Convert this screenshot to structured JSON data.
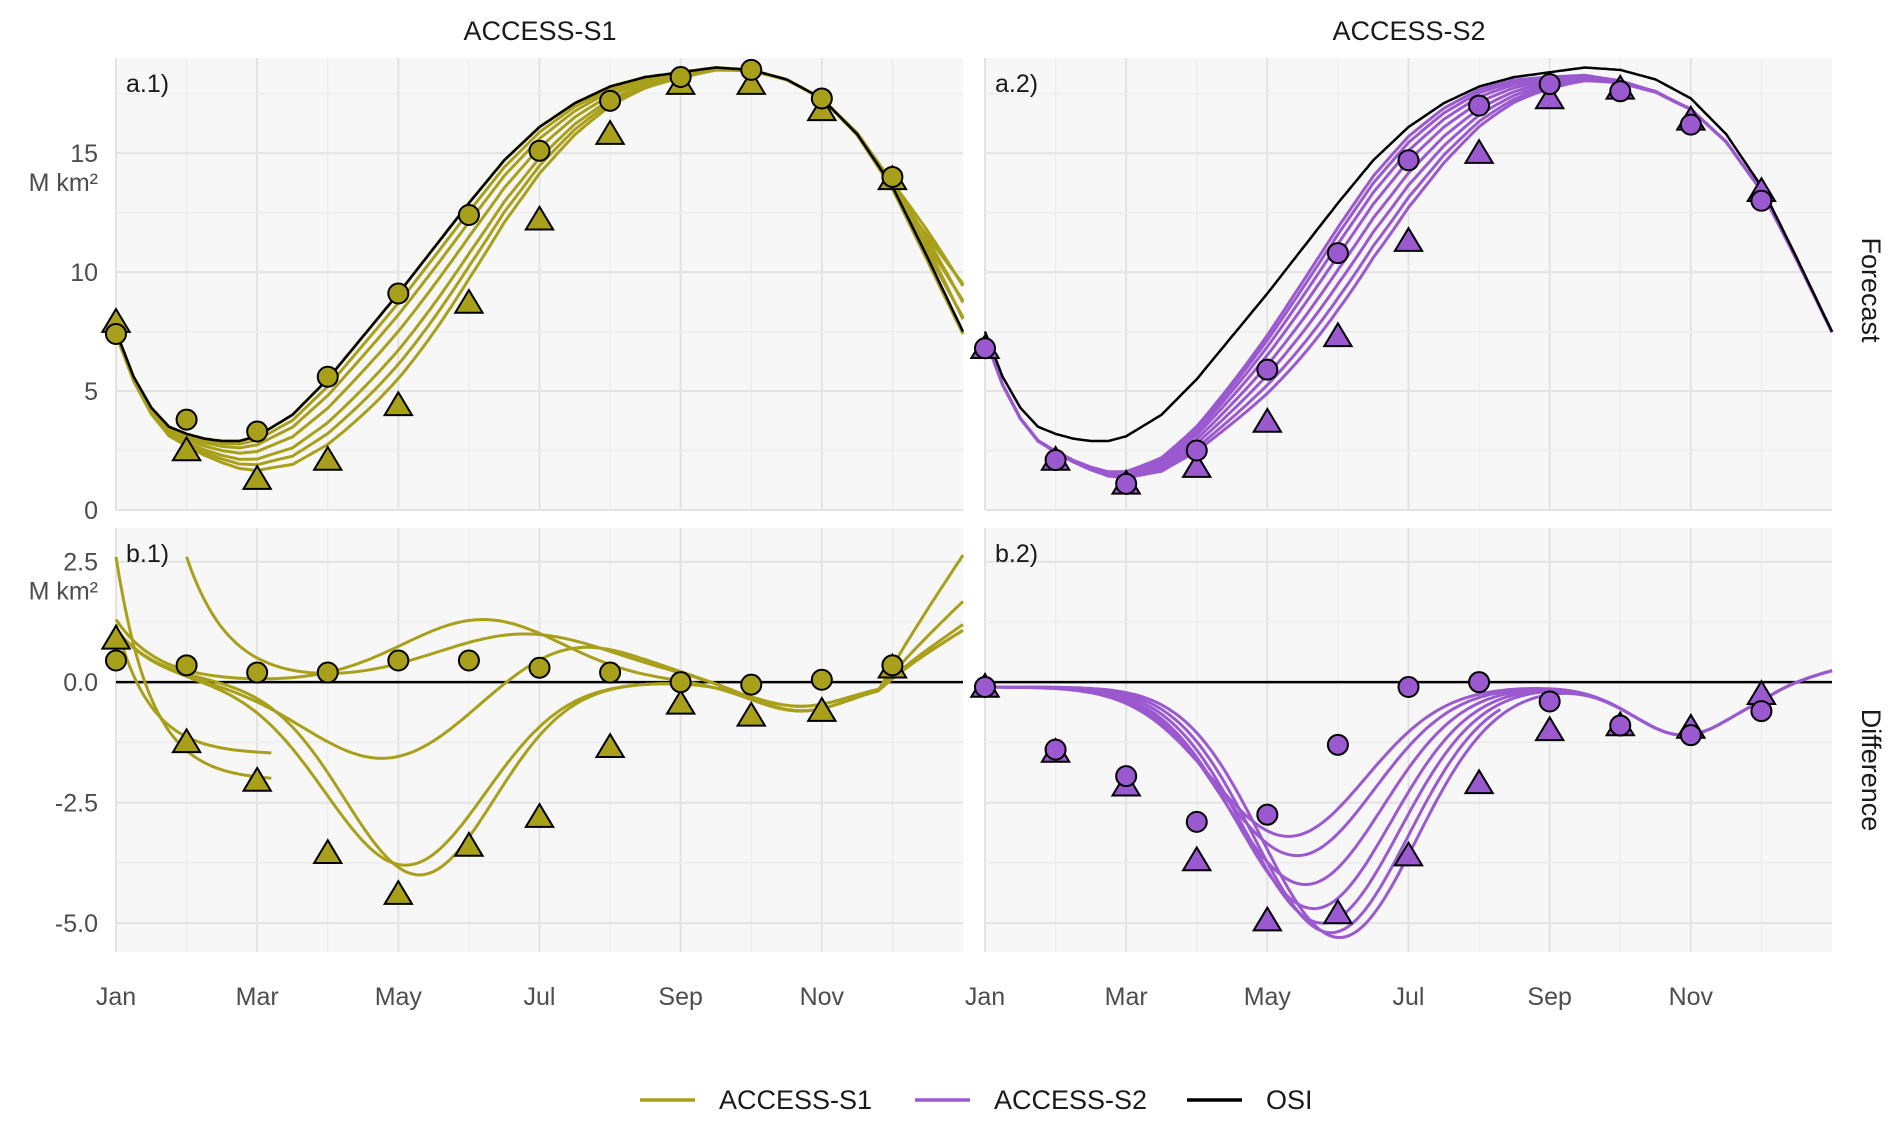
{
  "chart_data": {
    "type": "line",
    "title": "",
    "columns": [
      "ACCESS-S1",
      "ACCESS-S2"
    ],
    "rows": [
      "Forecast",
      "Difference"
    ],
    "panel_tags": {
      "a.1": "a.1)",
      "a.2": "a.2)",
      "b.1": "b.1)",
      "b.2": "b.2)"
    },
    "y_unit": "M km²",
    "x_ticks": [
      "Jan",
      "Mar",
      "May",
      "Jul",
      "Sep",
      "Nov"
    ],
    "x_tick_positions_month": [
      0,
      2,
      4,
      6,
      8,
      10
    ],
    "x_range_month": [
      0,
      12
    ],
    "forecast_yticks": [
      "0",
      "5",
      "10",
      "15"
    ],
    "forecast_ylim": [
      0,
      19
    ],
    "difference_yticks": [
      "-5.0",
      "-2.5",
      "0.0",
      "2.5"
    ],
    "difference_ylim": [
      -5.6,
      3.2
    ],
    "grid": true,
    "legend_position": "bottom",
    "legend": [
      {
        "name": "ACCESS-S1",
        "color": "#a8a01a"
      },
      {
        "name": "ACCESS-S2",
        "color": "#9b59d0"
      },
      {
        "name": "OSI",
        "color": "#000000"
      }
    ],
    "osi_forecast": {
      "x": [
        0,
        0.25,
        0.5,
        0.75,
        1,
        1.25,
        1.5,
        1.75,
        2,
        2.5,
        3,
        3.5,
        4,
        4.5,
        5,
        5.5,
        6,
        6.5,
        7,
        7.5,
        8,
        8.5,
        9,
        9.5,
        10,
        10.5,
        11,
        11.5,
        12
      ],
      "y": [
        7.5,
        5.6,
        4.3,
        3.5,
        3.2,
        3.0,
        2.9,
        2.9,
        3.1,
        4.0,
        5.5,
        7.3,
        9.1,
        11.0,
        12.9,
        14.7,
        16.1,
        17.1,
        17.8,
        18.2,
        18.4,
        18.6,
        18.5,
        18.1,
        17.3,
        15.8,
        13.6,
        10.6,
        7.5
      ]
    },
    "s1_circles_forecast": {
      "x": [
        0,
        1,
        2,
        3,
        4,
        5,
        6,
        7,
        8,
        9,
        10,
        11
      ],
      "y": [
        7.4,
        3.8,
        3.3,
        5.6,
        9.1,
        12.4,
        15.1,
        17.2,
        18.2,
        18.5,
        17.3,
        14.0
      ]
    },
    "s1_triangles_forecast": {
      "x": [
        0,
        1,
        2,
        3,
        4,
        5,
        6,
        7,
        8,
        9,
        10,
        11
      ],
      "y": [
        7.9,
        2.5,
        1.3,
        2.1,
        4.4,
        8.7,
        12.2,
        15.8,
        17.9,
        17.9,
        16.8,
        13.9
      ]
    },
    "s2_circles_forecast": {
      "x": [
        0,
        1,
        2,
        3,
        4,
        5,
        6,
        7,
        8,
        9,
        10,
        11
      ],
      "y": [
        6.8,
        2.1,
        1.1,
        2.5,
        5.9,
        10.8,
        14.7,
        17.0,
        17.9,
        17.6,
        16.2,
        13.0
      ]
    },
    "s2_triangles_forecast": {
      "x": [
        0,
        1,
        2,
        3,
        4,
        5,
        6,
        7,
        8,
        9,
        10,
        11
      ],
      "y": [
        6.8,
        2.1,
        1.1,
        1.8,
        3.7,
        7.3,
        11.3,
        15.0,
        17.3,
        17.7,
        16.4,
        13.4
      ]
    },
    "s1_circles_difference": {
      "x": [
        0,
        1,
        2,
        3,
        4,
        5,
        6,
        7,
        8,
        9,
        10,
        11
      ],
      "y": [
        0.45,
        0.35,
        0.2,
        0.2,
        0.45,
        0.45,
        0.3,
        0.2,
        0.0,
        -0.05,
        0.05,
        0.35
      ]
    },
    "s1_triangles_difference": {
      "x": [
        0,
        1,
        2,
        3,
        4,
        5,
        6,
        7,
        8,
        9,
        10,
        11
      ],
      "y": [
        0.9,
        -1.25,
        -2.05,
        -3.55,
        -4.4,
        -3.4,
        -2.8,
        -1.35,
        -0.45,
        -0.7,
        -0.6,
        0.3
      ]
    },
    "s2_circles_difference": {
      "x": [
        0,
        1,
        2,
        3,
        4,
        5,
        6,
        7,
        8,
        9,
        10,
        11
      ],
      "y": [
        -0.1,
        -1.4,
        -1.95,
        -2.9,
        -2.75,
        -1.3,
        -0.1,
        0.0,
        -0.4,
        -0.9,
        -1.1,
        -0.6
      ]
    },
    "s2_triangles_difference": {
      "x": [
        0,
        1,
        2,
        3,
        4,
        5,
        6,
        7,
        8,
        9,
        10,
        11
      ],
      "y": [
        -0.1,
        -1.45,
        -2.15,
        -3.7,
        -4.95,
        -4.8,
        -3.6,
        -2.1,
        -1.0,
        -0.9,
        -0.95,
        -0.25
      ]
    },
    "s1_forecast_traces_start_month": [
      0,
      1,
      2,
      3,
      4,
      5,
      6,
      7,
      8,
      9,
      10,
      11
    ],
    "s2_forecast_traces_start_month": [
      0,
      1,
      2,
      3,
      4,
      5,
      6,
      7,
      8,
      9,
      10,
      11
    ]
  }
}
